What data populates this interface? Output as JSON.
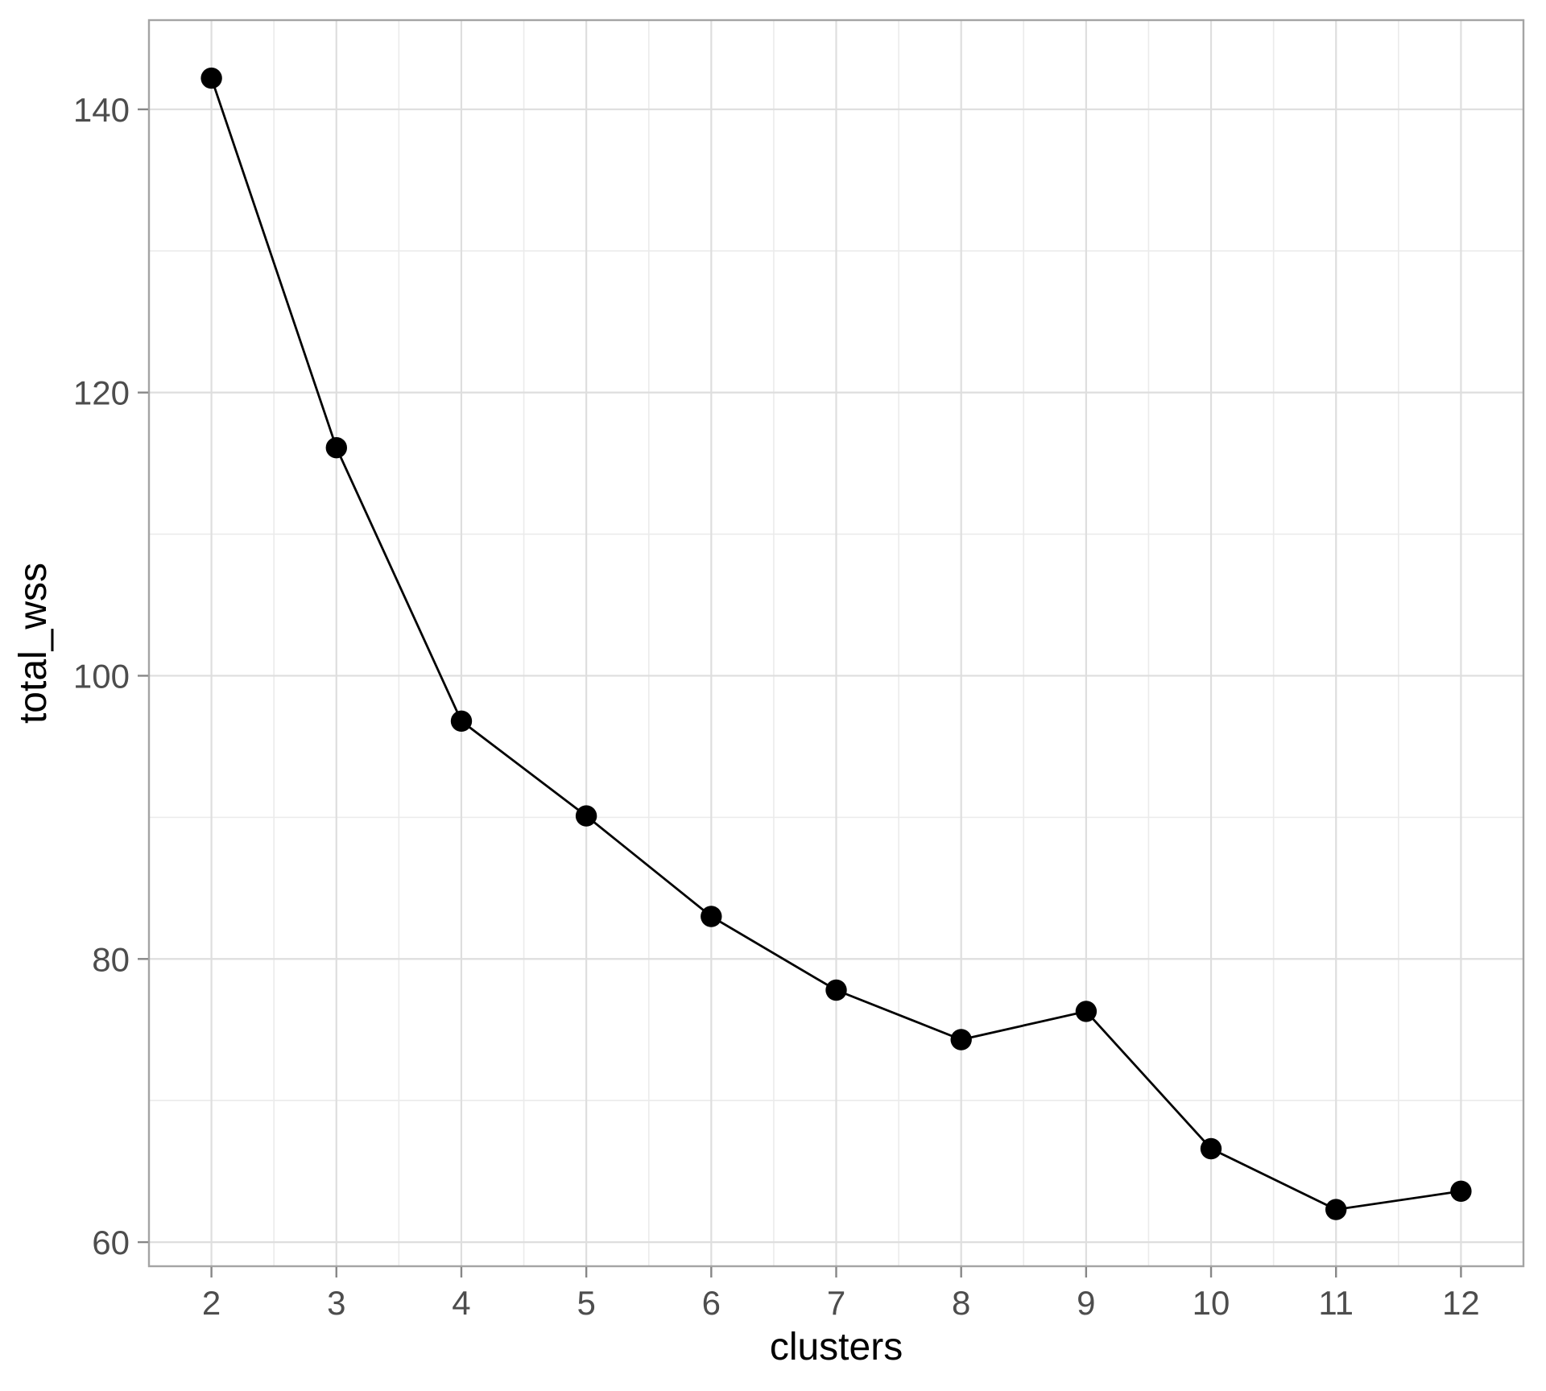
{
  "chart_data": {
    "type": "line",
    "title": "",
    "xlabel": "clusters",
    "ylabel": "total_wss",
    "x": [
      2,
      3,
      4,
      5,
      6,
      7,
      8,
      9,
      10,
      11,
      12
    ],
    "series": [
      {
        "name": "total_wss",
        "values": [
          142.2,
          116.1,
          96.8,
          90.1,
          83.0,
          77.8,
          74.3,
          76.3,
          66.6,
          62.3,
          63.6
        ]
      }
    ],
    "x_ticks": [
      2,
      3,
      4,
      5,
      6,
      7,
      8,
      9,
      10,
      11,
      12
    ],
    "y_ticks": [
      60,
      80,
      100,
      120,
      140
    ],
    "x_minor_ticks": [
      2.5,
      3.5,
      4.5,
      5.5,
      6.5,
      7.5,
      8.5,
      9.5,
      10.5,
      11.5
    ],
    "y_minor_ticks": [
      70,
      90,
      110,
      130
    ],
    "x_domain": [
      1.5,
      12.5
    ],
    "y_domain": [
      58.3,
      146.3
    ],
    "grid": true,
    "legend_position": "none",
    "colors": {
      "background": "#ffffff",
      "panel_background": "#ffffff",
      "panel_border": "#a4a4a4",
      "grid_major": "#dedede",
      "grid_minor": "#ebebeb",
      "tick_mark": "#878787",
      "tick_label": "#4d4d4d",
      "axis_title": "#000000",
      "line": "#000000",
      "point": "#000000"
    }
  }
}
